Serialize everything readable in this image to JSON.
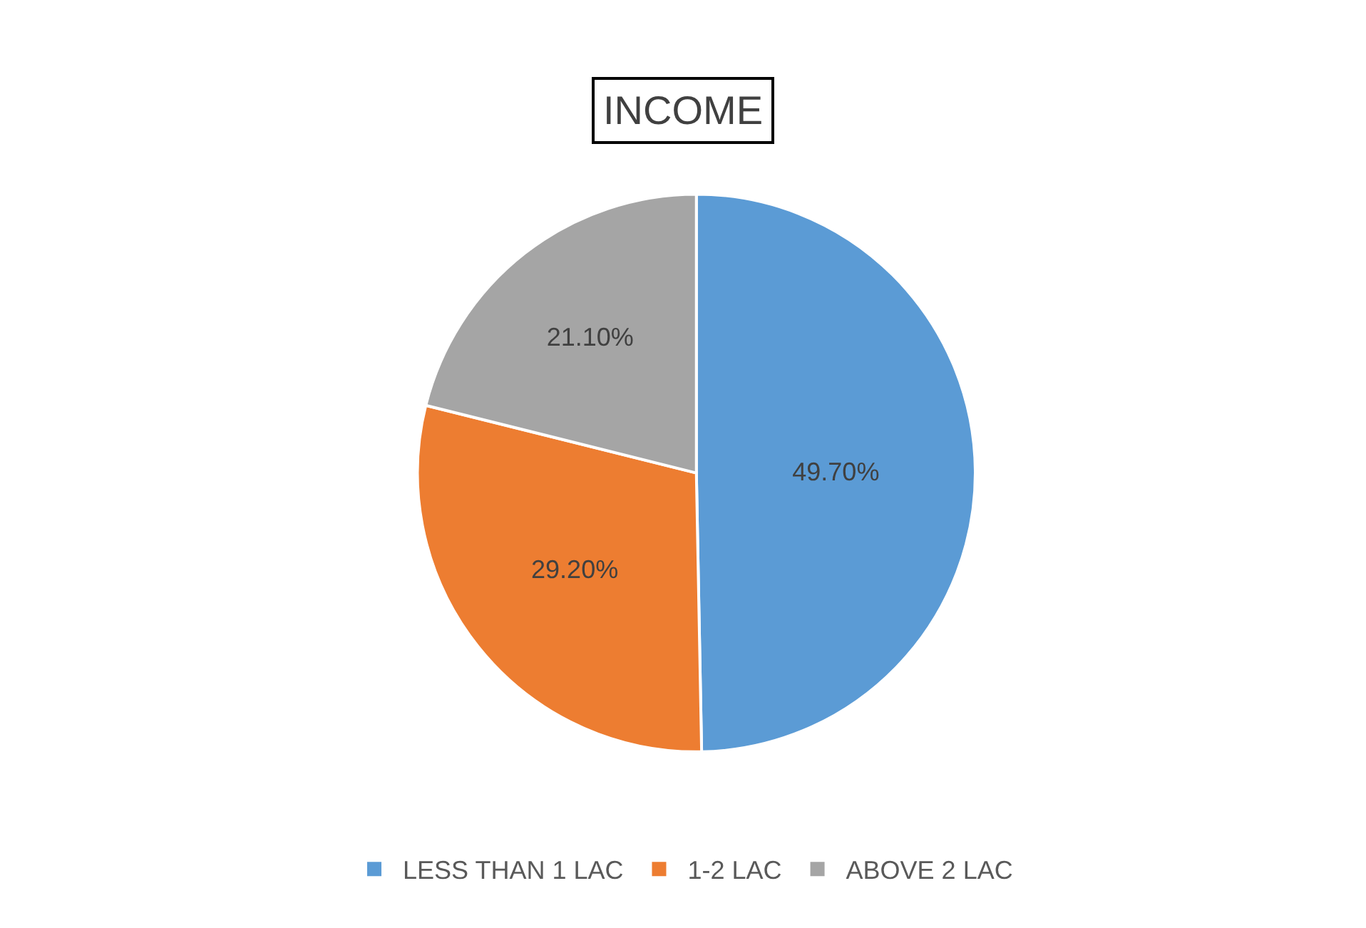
{
  "chart_data": {
    "type": "pie",
    "title": "INCOME",
    "categories": [
      "LESS THAN 1 LAC",
      "1-2 LAC",
      "ABOVE 2 LAC"
    ],
    "values": [
      49.7,
      29.2,
      21.1
    ],
    "value_labels": [
      "49.70%",
      "29.20%",
      "21.10%"
    ],
    "colors": [
      "#5b9bd5",
      "#ed7d31",
      "#a5a5a5"
    ],
    "legend": "bottom"
  }
}
